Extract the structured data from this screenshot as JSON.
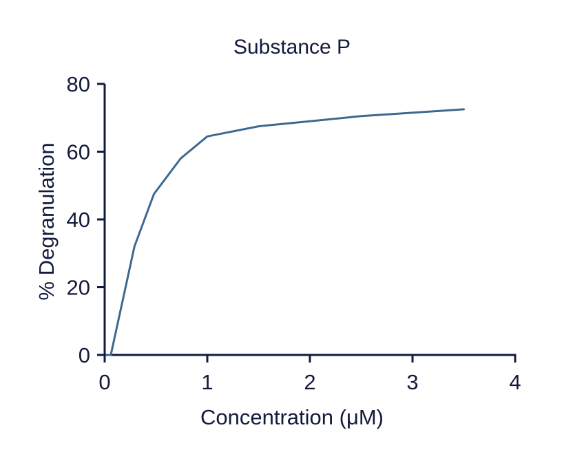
{
  "chart_data": {
    "type": "line",
    "title": "Substance P",
    "xlabel": "Concentration (μM)",
    "ylabel": "% Degranulation",
    "xlim": [
      0,
      4
    ],
    "ylim": [
      0,
      80
    ],
    "xticks": [
      0,
      1,
      2,
      3,
      4
    ],
    "yticks": [
      0,
      20,
      40,
      60,
      80
    ],
    "grid": false,
    "series": [
      {
        "color": "#3d6991",
        "x": [
          0.02,
          0.06,
          0.29,
          0.48,
          0.74,
          1.0,
          1.5,
          2.0,
          2.5,
          3.0,
          3.5
        ],
        "y": [
          0,
          0,
          32,
          47.5,
          58,
          64.5,
          67.5,
          69,
          70.5,
          71.5,
          72.5
        ]
      }
    ]
  }
}
